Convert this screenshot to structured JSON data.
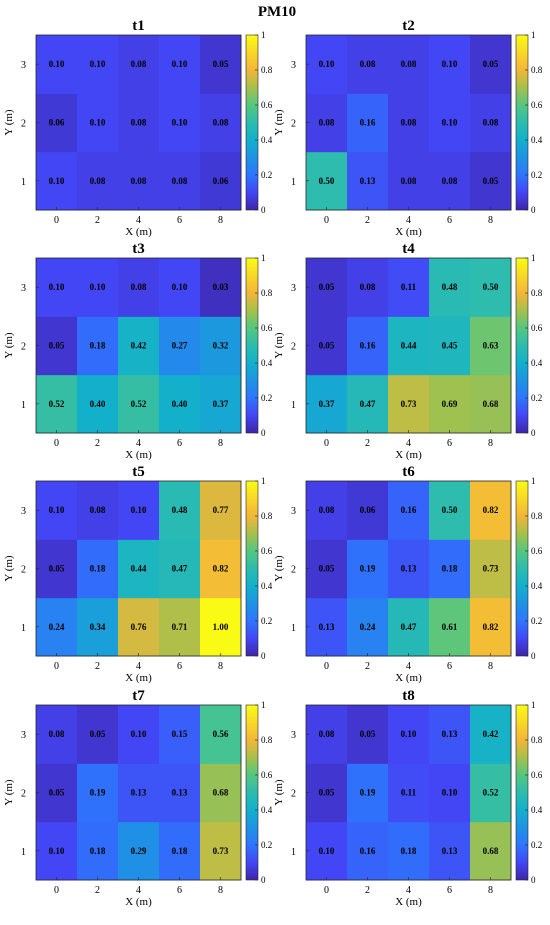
{
  "figure": {
    "title": "PM10"
  },
  "chart_data": [
    {
      "type": "heatmap",
      "title": "t1",
      "xlabel": "X (m)",
      "ylabel": "Y (m)",
      "x": [
        0,
        2,
        4,
        6,
        8
      ],
      "y": [
        1,
        2,
        3
      ],
      "zlim": [
        0,
        1
      ],
      "colorbar_ticks": [
        "0",
        "0.2",
        "0.4",
        "0.6",
        "0.8",
        "1"
      ],
      "values": [
        [
          0.1,
          0.08,
          0.08,
          0.08,
          0.06
        ],
        [
          0.06,
          0.1,
          0.08,
          0.1,
          0.08
        ],
        [
          0.1,
          0.1,
          0.08,
          0.1,
          0.05
        ]
      ],
      "labels": [
        [
          "0.10",
          "0.08",
          "0.08",
          "0.08",
          "0.06"
        ],
        [
          "0.06",
          "0.10",
          "0.08",
          "0.10",
          "0.08"
        ],
        [
          "0.10",
          "0.10",
          "0.08",
          "0.10",
          "0.05"
        ]
      ]
    },
    {
      "type": "heatmap",
      "title": "t2",
      "xlabel": "X (m)",
      "ylabel": "Y (m)",
      "x": [
        0,
        2,
        4,
        6,
        8
      ],
      "y": [
        1,
        2,
        3
      ],
      "zlim": [
        0,
        1
      ],
      "colorbar_ticks": [
        "0",
        "0.2",
        "0.4",
        "0.6",
        "0.8",
        "1"
      ],
      "values": [
        [
          0.5,
          0.13,
          0.08,
          0.08,
          0.05
        ],
        [
          0.08,
          0.16,
          0.08,
          0.1,
          0.08
        ],
        [
          0.1,
          0.08,
          0.08,
          0.1,
          0.05
        ]
      ],
      "labels": [
        [
          "0.50",
          "0.13",
          "0.08",
          "0.08",
          "0.05"
        ],
        [
          "0.08",
          "0.16",
          "0.08",
          "0.10",
          "0.08"
        ],
        [
          "0.10",
          "0.08",
          "0.08",
          "0.10",
          "0.05"
        ]
      ]
    },
    {
      "type": "heatmap",
      "title": "t3",
      "xlabel": "X (m)",
      "ylabel": "Y (m)",
      "x": [
        0,
        2,
        4,
        6,
        8
      ],
      "y": [
        1,
        2,
        3
      ],
      "zlim": [
        0,
        1
      ],
      "colorbar_ticks": [
        "0",
        "0.2",
        "0.4",
        "0.6",
        "0.8",
        "1"
      ],
      "values": [
        [
          0.52,
          0.4,
          0.52,
          0.4,
          0.37
        ],
        [
          0.05,
          0.18,
          0.42,
          0.27,
          0.32
        ],
        [
          0.1,
          0.1,
          0.08,
          0.1,
          0.03
        ]
      ],
      "labels": [
        [
          "0.52",
          "0.40",
          "0.52",
          "0.40",
          "0.37"
        ],
        [
          "0.05",
          "0.18",
          "0.42",
          "0.27",
          "0.32"
        ],
        [
          "0.10",
          "0.10",
          "0.08",
          "0.10",
          "0.03"
        ]
      ]
    },
    {
      "type": "heatmap",
      "title": "t4",
      "xlabel": "X (m)",
      "ylabel": "Y (m)",
      "x": [
        0,
        2,
        4,
        6,
        8
      ],
      "y": [
        1,
        2,
        3
      ],
      "zlim": [
        0,
        1
      ],
      "colorbar_ticks": [
        "0",
        "0.2",
        "0.4",
        "0.6",
        "0.8",
        "1"
      ],
      "values": [
        [
          0.37,
          0.47,
          0.73,
          0.69,
          0.68
        ],
        [
          0.05,
          0.16,
          0.44,
          0.45,
          0.63
        ],
        [
          0.05,
          0.08,
          0.11,
          0.48,
          0.5
        ]
      ],
      "labels": [
        [
          "0.37",
          "0.47",
          "0.73",
          "0.69",
          "0.68"
        ],
        [
          "0.05",
          "0.16",
          "0.44",
          "0.45",
          "0.63"
        ],
        [
          "0.05",
          "0.08",
          "0.11",
          "0.48",
          "0.50"
        ]
      ]
    },
    {
      "type": "heatmap",
      "title": "t5",
      "xlabel": "X (m)",
      "ylabel": "Y (m)",
      "x": [
        0,
        2,
        4,
        6,
        8
      ],
      "y": [
        1,
        2,
        3
      ],
      "zlim": [
        0,
        1
      ],
      "colorbar_ticks": [
        "0",
        "0.2",
        "0.4",
        "0.6",
        "0.8",
        "1"
      ],
      "values": [
        [
          0.24,
          0.34,
          0.76,
          0.71,
          1.0
        ],
        [
          0.05,
          0.18,
          0.44,
          0.47,
          0.82
        ],
        [
          0.1,
          0.08,
          0.1,
          0.48,
          0.77
        ]
      ],
      "labels": [
        [
          "0.24",
          "0.34",
          "0.76",
          "0.71",
          "1.00"
        ],
        [
          "0.05",
          "0.18",
          "0.44",
          "0.47",
          "0.82"
        ],
        [
          "0.10",
          "0.08",
          "0.10",
          "0.48",
          "0.77"
        ]
      ]
    },
    {
      "type": "heatmap",
      "title": "t6",
      "xlabel": "X (m)",
      "ylabel": "Y (m)",
      "x": [
        0,
        2,
        4,
        6,
        8
      ],
      "y": [
        1,
        2,
        3
      ],
      "zlim": [
        0,
        1
      ],
      "colorbar_ticks": [
        "0",
        "0.2",
        "0.4",
        "0.6",
        "0.8",
        "1"
      ],
      "values": [
        [
          0.13,
          0.24,
          0.47,
          0.61,
          0.82
        ],
        [
          0.05,
          0.19,
          0.13,
          0.18,
          0.73
        ],
        [
          0.08,
          0.06,
          0.16,
          0.5,
          0.82
        ]
      ],
      "labels": [
        [
          "0.13",
          "0.24",
          "0.47",
          "0.61",
          "0.82"
        ],
        [
          "0.05",
          "0.19",
          "0.13",
          "0.18",
          "0.73"
        ],
        [
          "0.08",
          "0.06",
          "0.16",
          "0.50",
          "0.82"
        ]
      ]
    },
    {
      "type": "heatmap",
      "title": "t7",
      "xlabel": "X (m)",
      "ylabel": "Y (m)",
      "x": [
        0,
        2,
        4,
        6,
        8
      ],
      "y": [
        1,
        2,
        3
      ],
      "zlim": [
        0,
        1
      ],
      "colorbar_ticks": [
        "0",
        "0.2",
        "0.4",
        "0.6",
        "0.8",
        "1"
      ],
      "values": [
        [
          0.1,
          0.18,
          0.29,
          0.18,
          0.73
        ],
        [
          0.05,
          0.19,
          0.13,
          0.13,
          0.68
        ],
        [
          0.08,
          0.05,
          0.1,
          0.15,
          0.56
        ]
      ],
      "labels": [
        [
          "0.10",
          "0.18",
          "0.29",
          "0.18",
          "0.73"
        ],
        [
          "0.05",
          "0.19",
          "0.13",
          "0.13",
          "0.68"
        ],
        [
          "0.08",
          "0.05",
          "0.10",
          "0.15",
          "0.56"
        ]
      ]
    },
    {
      "type": "heatmap",
      "title": "t8",
      "xlabel": "X (m)",
      "ylabel": "Y (m)",
      "x": [
        0,
        2,
        4,
        6,
        8
      ],
      "y": [
        1,
        2,
        3
      ],
      "zlim": [
        0,
        1
      ],
      "colorbar_ticks": [
        "0",
        "0.2",
        "0.4",
        "0.6",
        "0.8",
        "1"
      ],
      "values": [
        [
          0.1,
          0.16,
          0.18,
          0.13,
          0.68
        ],
        [
          0.05,
          0.19,
          0.11,
          0.1,
          0.52
        ],
        [
          0.08,
          0.05,
          0.1,
          0.13,
          0.42
        ]
      ],
      "labels": [
        [
          "0.10",
          "0.16",
          "0.18",
          "0.13",
          "0.68"
        ],
        [
          "0.05",
          "0.19",
          "0.11",
          "0.10",
          "0.52"
        ],
        [
          "0.08",
          "0.05",
          "0.10",
          "0.13",
          "0.42"
        ]
      ]
    }
  ]
}
